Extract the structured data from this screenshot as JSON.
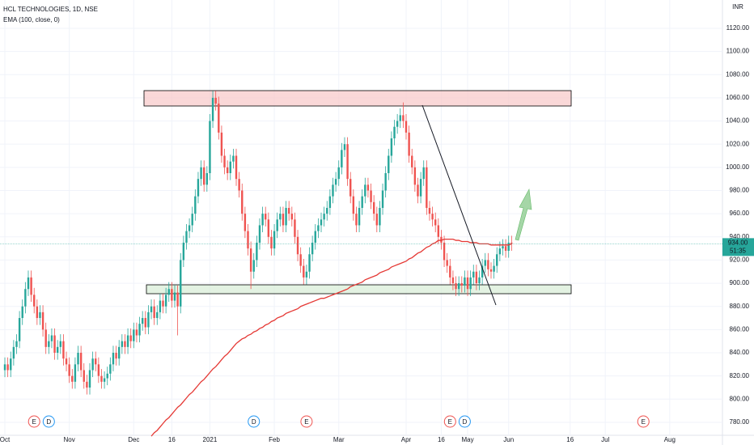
{
  "chart_data": {
    "type": "candlestick",
    "title": "HCL TECHNOLOGIES, 1D, NSE",
    "currency": "INR",
    "up_color": "#26a69a",
    "down_color": "#ef5350",
    "open": [
      825,
      830,
      825,
      835,
      845,
      850,
      870,
      880,
      895,
      905,
      890,
      880,
      870,
      875,
      860,
      845,
      850,
      855,
      840,
      845,
      850,
      835,
      830,
      820,
      815,
      830,
      840,
      825,
      815,
      810,
      825,
      835,
      830,
      820,
      815,
      818,
      822,
      830,
      840,
      835,
      845,
      850,
      845,
      855,
      850,
      860,
      855,
      865,
      870,
      862,
      875,
      880,
      870,
      875,
      885,
      880,
      890,
      895,
      885,
      892,
      880,
      920,
      935,
      945,
      950,
      960,
      975,
      990,
      1000,
      985,
      995,
      1040,
      1060,
      1055,
      1030,
      1010,
      1000,
      995,
      1005,
      1010,
      990,
      980,
      960,
      945,
      930,
      910,
      920,
      935,
      950,
      960,
      955,
      940,
      930,
      945,
      955,
      960,
      950,
      965,
      960,
      955,
      940,
      925,
      915,
      905,
      910,
      925,
      935,
      945,
      950,
      955,
      960,
      965,
      975,
      985,
      990,
      1000,
      1015,
      1020,
      990,
      975,
      960,
      950,
      965,
      975,
      985,
      980,
      970,
      960,
      950,
      965,
      980,
      995,
      1010,
      1025,
      1035,
      1040,
      1045,
      1040,
      1030,
      1010,
      1000,
      985,
      975,
      990,
      1000,
      965,
      960,
      955,
      950,
      940,
      935,
      920,
      915,
      905,
      900,
      895,
      900,
      898,
      905,
      895,
      905,
      910,
      900,
      905,
      915,
      920,
      912,
      910,
      915,
      925,
      930,
      932,
      928,
      935
    ],
    "high": [
      836,
      836,
      841,
      851,
      856,
      876,
      886,
      901,
      911,
      911,
      896,
      886,
      881,
      881,
      866,
      856,
      861,
      861,
      851,
      856,
      856,
      841,
      836,
      826,
      836,
      846,
      846,
      831,
      821,
      831,
      841,
      841,
      836,
      826,
      824,
      828,
      836,
      846,
      846,
      851,
      856,
      856,
      861,
      861,
      866,
      866,
      871,
      876,
      876,
      881,
      886,
      886,
      881,
      891,
      891,
      896,
      901,
      901,
      898,
      898,
      926,
      941,
      951,
      956,
      966,
      981,
      996,
      1006,
      1006,
      1001,
      1046,
      1066,
      1066,
      1061,
      1036,
      1016,
      1006,
      1011,
      1016,
      1016,
      996,
      986,
      966,
      951,
      936,
      926,
      941,
      956,
      966,
      966,
      961,
      946,
      951,
      961,
      966,
      966,
      971,
      971,
      966,
      961,
      946,
      931,
      921,
      916,
      931,
      941,
      951,
      956,
      961,
      966,
      971,
      981,
      991,
      996,
      1006,
      1021,
      1026,
      1026,
      996,
      981,
      966,
      971,
      981,
      991,
      991,
      986,
      976,
      966,
      971,
      986,
      1001,
      1016,
      1031,
      1041,
      1046,
      1051,
      1056,
      1046,
      1036,
      1016,
      1006,
      991,
      996,
      1006,
      1006,
      971,
      966,
      961,
      956,
      946,
      941,
      926,
      921,
      911,
      906,
      906,
      906,
      911,
      911,
      911,
      916,
      916,
      911,
      921,
      926,
      926,
      918,
      921,
      931,
      936,
      938,
      938,
      941,
      941
    ],
    "low": [
      819,
      819,
      819,
      829,
      839,
      844,
      864,
      874,
      889,
      884,
      874,
      864,
      864,
      854,
      839,
      839,
      844,
      834,
      834,
      839,
      829,
      824,
      814,
      809,
      809,
      824,
      819,
      809,
      804,
      804,
      819,
      824,
      814,
      809,
      809,
      812,
      816,
      824,
      829,
      829,
      839,
      839,
      839,
      844,
      844,
      849,
      849,
      859,
      856,
      856,
      869,
      864,
      864,
      869,
      874,
      874,
      884,
      879,
      879,
      855,
      874,
      914,
      929,
      939,
      944,
      954,
      969,
      984,
      979,
      979,
      989,
      1034,
      1049,
      1024,
      1004,
      994,
      989,
      989,
      999,
      984,
      974,
      954,
      939,
      924,
      895,
      904,
      914,
      929,
      944,
      949,
      934,
      924,
      924,
      939,
      949,
      944,
      944,
      954,
      949,
      934,
      919,
      909,
      899,
      899,
      904,
      919,
      929,
      939,
      944,
      949,
      954,
      959,
      969,
      979,
      984,
      994,
      1009,
      984,
      969,
      954,
      944,
      944,
      959,
      969,
      974,
      964,
      954,
      944,
      944,
      959,
      974,
      989,
      1004,
      1019,
      1029,
      1034,
      1034,
      1024,
      1004,
      994,
      979,
      969,
      969,
      984,
      959,
      954,
      949,
      944,
      934,
      929,
      914,
      909,
      899,
      894,
      889,
      889,
      892,
      892,
      889,
      889,
      899,
      894,
      894,
      899,
      909,
      906,
      904,
      904,
      909,
      919,
      924,
      922,
      922,
      928
    ],
    "close": [
      830,
      825,
      835,
      845,
      850,
      870,
      880,
      895,
      905,
      890,
      880,
      870,
      875,
      860,
      845,
      850,
      855,
      840,
      845,
      850,
      835,
      830,
      820,
      815,
      830,
      840,
      825,
      815,
      810,
      825,
      835,
      830,
      820,
      815,
      818,
      822,
      830,
      840,
      835,
      845,
      850,
      845,
      855,
      850,
      860,
      855,
      865,
      870,
      862,
      875,
      880,
      870,
      875,
      885,
      880,
      890,
      895,
      885,
      892,
      880,
      920,
      935,
      945,
      950,
      960,
      975,
      990,
      1000,
      985,
      995,
      1040,
      1060,
      1055,
      1030,
      1010,
      1000,
      995,
      1005,
      1010,
      990,
      980,
      960,
      945,
      930,
      910,
      920,
      935,
      950,
      960,
      955,
      940,
      930,
      945,
      955,
      960,
      950,
      965,
      960,
      955,
      940,
      925,
      915,
      905,
      910,
      925,
      935,
      945,
      950,
      955,
      960,
      965,
      975,
      985,
      990,
      1000,
      1015,
      1020,
      990,
      975,
      960,
      950,
      965,
      975,
      985,
      980,
      970,
      960,
      950,
      965,
      980,
      995,
      1010,
      1025,
      1035,
      1040,
      1045,
      1040,
      1030,
      1010,
      1000,
      985,
      975,
      990,
      1000,
      965,
      960,
      955,
      950,
      940,
      935,
      920,
      915,
      905,
      900,
      895,
      900,
      898,
      905,
      895,
      905,
      910,
      900,
      905,
      915,
      920,
      912,
      910,
      915,
      925,
      930,
      932,
      928,
      935,
      934
    ],
    "series": [
      {
        "name": "EMA (100, close, 0)",
        "color": "#e53935",
        "values": [
          null,
          null,
          null,
          null,
          null,
          null,
          null,
          null,
          null,
          null,
          null,
          null,
          null,
          null,
          null,
          null,
          null,
          null,
          null,
          null,
          null,
          null,
          null,
          null,
          null,
          null,
          null,
          null,
          null,
          null,
          null,
          null,
          null,
          null,
          null,
          null,
          null,
          null,
          null,
          null,
          null,
          null,
          null,
          null,
          null,
          null,
          null,
          null,
          null,
          null,
          768,
          771,
          773,
          776,
          779,
          782,
          784,
          787,
          790,
          793,
          795,
          798,
          801,
          804,
          806,
          809,
          812,
          815,
          817,
          820,
          823,
          826,
          828,
          831,
          834,
          837,
          839,
          842,
          845,
          848,
          850,
          852,
          853,
          855,
          856,
          858,
          859,
          861,
          862,
          864,
          865,
          867,
          868,
          870,
          871,
          872,
          874,
          875,
          876,
          877,
          878,
          880,
          881,
          882,
          883,
          884,
          885,
          886,
          887,
          887,
          888,
          889,
          890,
          891,
          892,
          893,
          894,
          895,
          897,
          898,
          899,
          900,
          901,
          903,
          904,
          905,
          906,
          907,
          909,
          910,
          911,
          912,
          914,
          915,
          916,
          917,
          918,
          919,
          921,
          922,
          924,
          926,
          927,
          929,
          931,
          932,
          934,
          935,
          937,
          937,
          938,
          938,
          938,
          938,
          937,
          937,
          936,
          936,
          936,
          935,
          935,
          935,
          934,
          934,
          934,
          934,
          933,
          933,
          933,
          933,
          933,
          933,
          933,
          934
        ]
      }
    ],
    "last_price": {
      "value": 934,
      "label": "934.00"
    },
    "countdown": "51:35",
    "xlim": [
      -1.66,
      245
    ],
    "ylim": [
      767.4,
      1144.4
    ],
    "xticks": [
      {
        "value": 0,
        "label": "Oct"
      },
      {
        "value": 22,
        "label": "Nov"
      },
      {
        "value": 44,
        "label": "Dec"
      },
      {
        "value": 57,
        "label": "16"
      },
      {
        "value": 70,
        "label": "2021"
      },
      {
        "value": 92,
        "label": "Feb"
      },
      {
        "value": 114,
        "label": "Mar"
      },
      {
        "value": 137,
        "label": "Apr"
      },
      {
        "value": 149,
        "label": "16"
      },
      {
        "value": 158,
        "label": "May"
      },
      {
        "value": 172,
        "label": "Jun"
      },
      {
        "value": 193,
        "label": "16"
      },
      {
        "value": 205,
        "label": "Jul"
      },
      {
        "value": 227,
        "label": "Aug"
      }
    ],
    "yticks": [
      {
        "value": 780,
        "label": "780.00"
      },
      {
        "value": 800,
        "label": "800.00"
      },
      {
        "value": 820,
        "label": "820.00"
      },
      {
        "value": 840,
        "label": "840.00"
      },
      {
        "value": 860,
        "label": "860.00"
      },
      {
        "value": 880,
        "label": "880.00"
      },
      {
        "value": 900,
        "label": "900.00"
      },
      {
        "value": 920,
        "label": "920.00"
      },
      {
        "value": 940,
        "label": "940.00"
      },
      {
        "value": 960,
        "label": "960.00"
      },
      {
        "value": 980,
        "label": "980.00"
      },
      {
        "value": 1000,
        "label": "1000.00"
      },
      {
        "value": 1020,
        "label": "1020.00"
      },
      {
        "value": 1040,
        "label": "1040.00"
      },
      {
        "value": 1060,
        "label": "1060.00"
      },
      {
        "value": 1080,
        "label": "1080.00"
      },
      {
        "value": 1100,
        "label": "1100.00"
      },
      {
        "value": 1120,
        "label": "1120.00"
      }
    ],
    "events": [
      {
        "label": "E",
        "index": 10,
        "color": "#ef5350"
      },
      {
        "label": "D",
        "index": 15,
        "color": "#2196f3"
      },
      {
        "label": "D",
        "index": 85,
        "color": "#2196f3"
      },
      {
        "label": "E",
        "index": 103,
        "color": "#ef5350"
      },
      {
        "label": "E",
        "index": 152,
        "color": "#ef5350"
      },
      {
        "label": "D",
        "index": 157,
        "color": "#2196f3"
      },
      {
        "label": "E",
        "index": 218,
        "color": "#ef5350"
      }
    ]
  }
}
